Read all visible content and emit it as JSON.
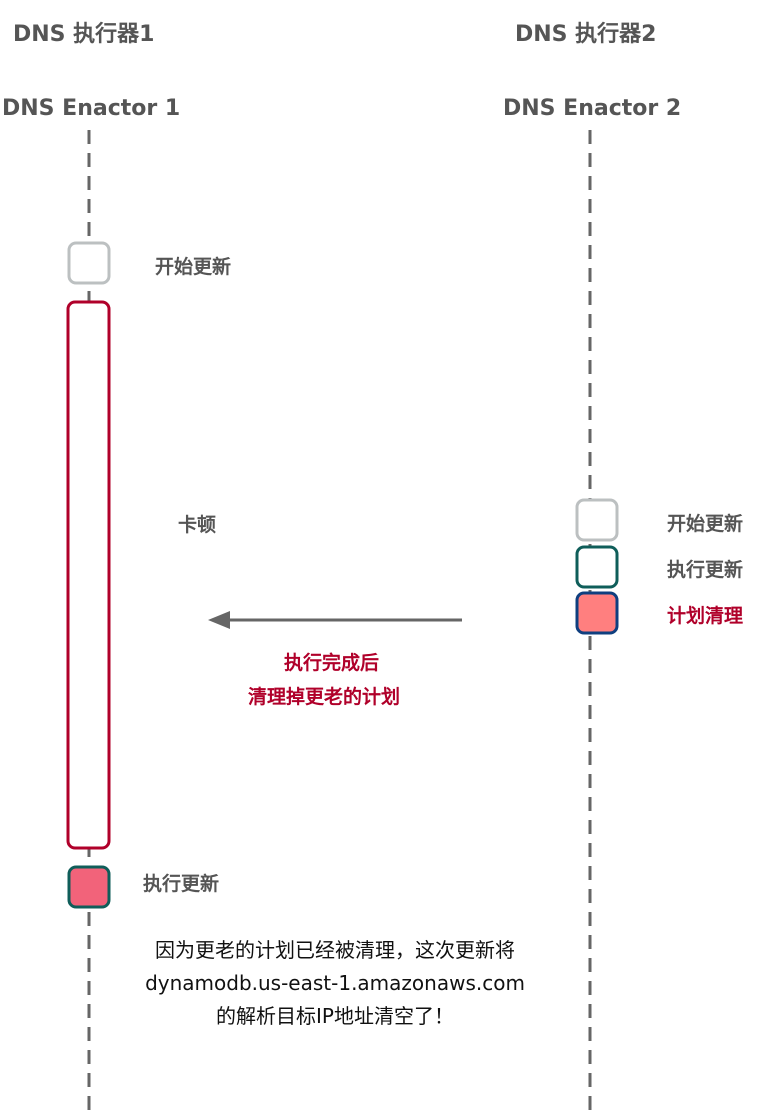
{
  "actors": [
    {
      "title_cn": "DNS 执行器1",
      "title_en": "DNS Enactor 1"
    },
    {
      "title_cn": "DNS 执行器2",
      "title_en": "DNS Enactor 2"
    }
  ],
  "left": {
    "start": "开始更新",
    "stall": "卡顿",
    "execute": "执行更新"
  },
  "right": {
    "start": "开始更新",
    "execute": "执行更新",
    "cleanup": "计划清理"
  },
  "arrow": {
    "line1": "执行完成后",
    "line2": "清理掉更老的计划"
  },
  "note": {
    "line1": "因为更老的计划已经被清理，这次更新将",
    "line2": "dynamodb.us-east-1.amazonaws.com",
    "line3": "的解析目标IP地址清空了！"
  },
  "colors": {
    "lifeline": "#666666",
    "start_border": "#BCC0C1",
    "execute_border": "#0F5E5A",
    "stall_border": "#B0002A",
    "cleanup_border": "#0F3F7F",
    "cleanup_fill": "#FF7F7F",
    "execute_fill": "#F2637A",
    "emphasis_text": "#B0002A"
  }
}
